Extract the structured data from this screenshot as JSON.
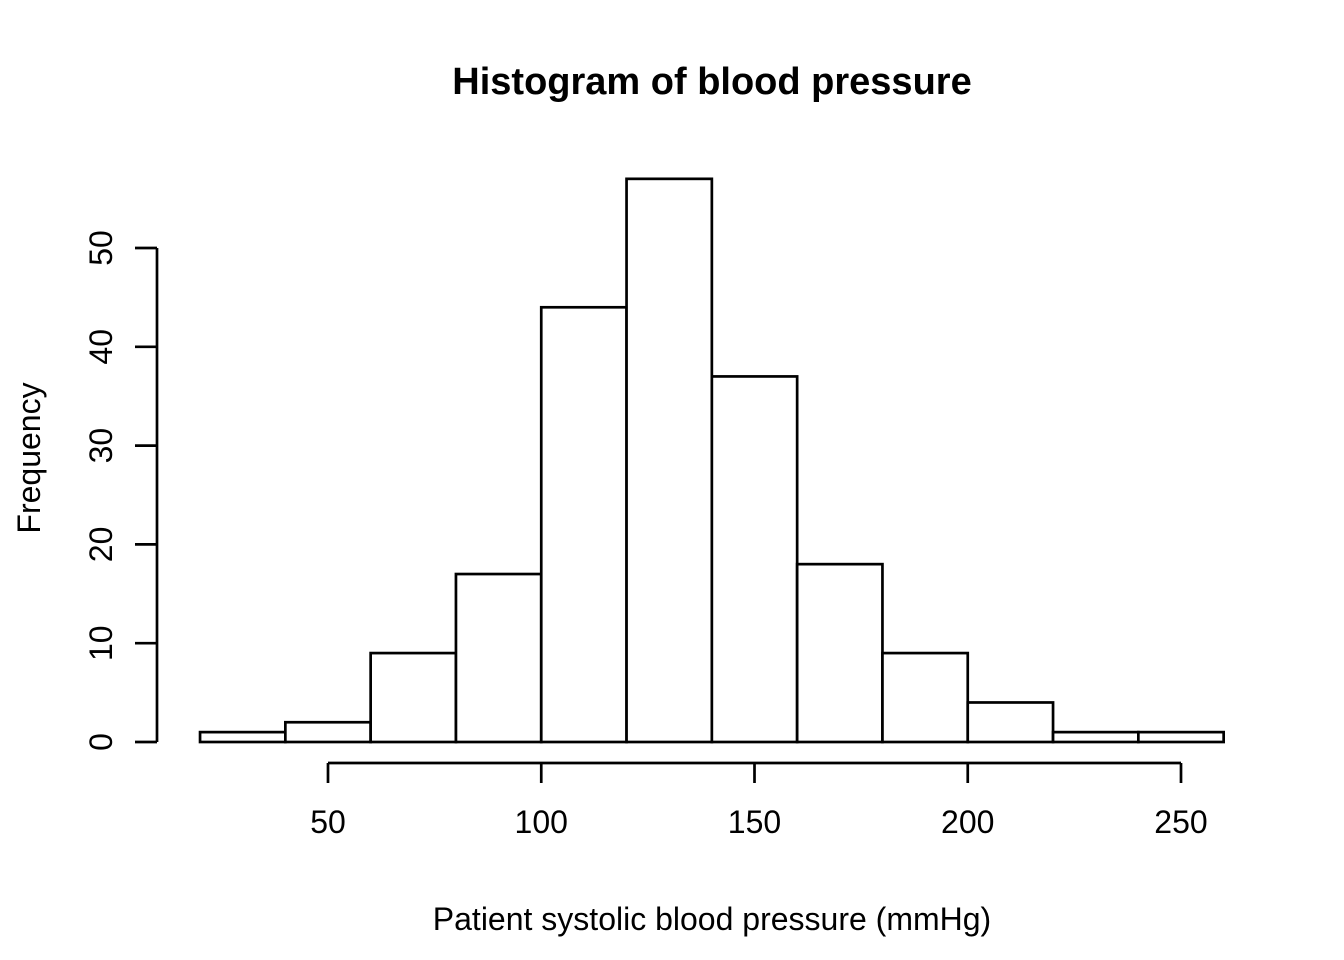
{
  "chart_data": {
    "type": "bar",
    "subtype": "histogram",
    "title": "Histogram of blood pressure",
    "xlabel": "Patient systolic blood pressure (mmHg)",
    "ylabel": "Frequency",
    "breaks": [
      20,
      40,
      60,
      80,
      100,
      120,
      140,
      160,
      180,
      200,
      220,
      240,
      260
    ],
    "counts": [
      1,
      2,
      9,
      17,
      44,
      57,
      37,
      18,
      9,
      4,
      1,
      1
    ],
    "x_ticks": [
      50,
      100,
      150,
      200,
      250
    ],
    "y_ticks": [
      0,
      10,
      20,
      30,
      40,
      50
    ],
    "xlim": [
      20,
      260
    ],
    "ylim": [
      0,
      57
    ],
    "grid": false,
    "legend": "none",
    "colors": {
      "bar_fill": "#ffffff",
      "bar_stroke": "#000000",
      "axis": "#000000",
      "text": "#000000",
      "background": "#ffffff"
    }
  }
}
